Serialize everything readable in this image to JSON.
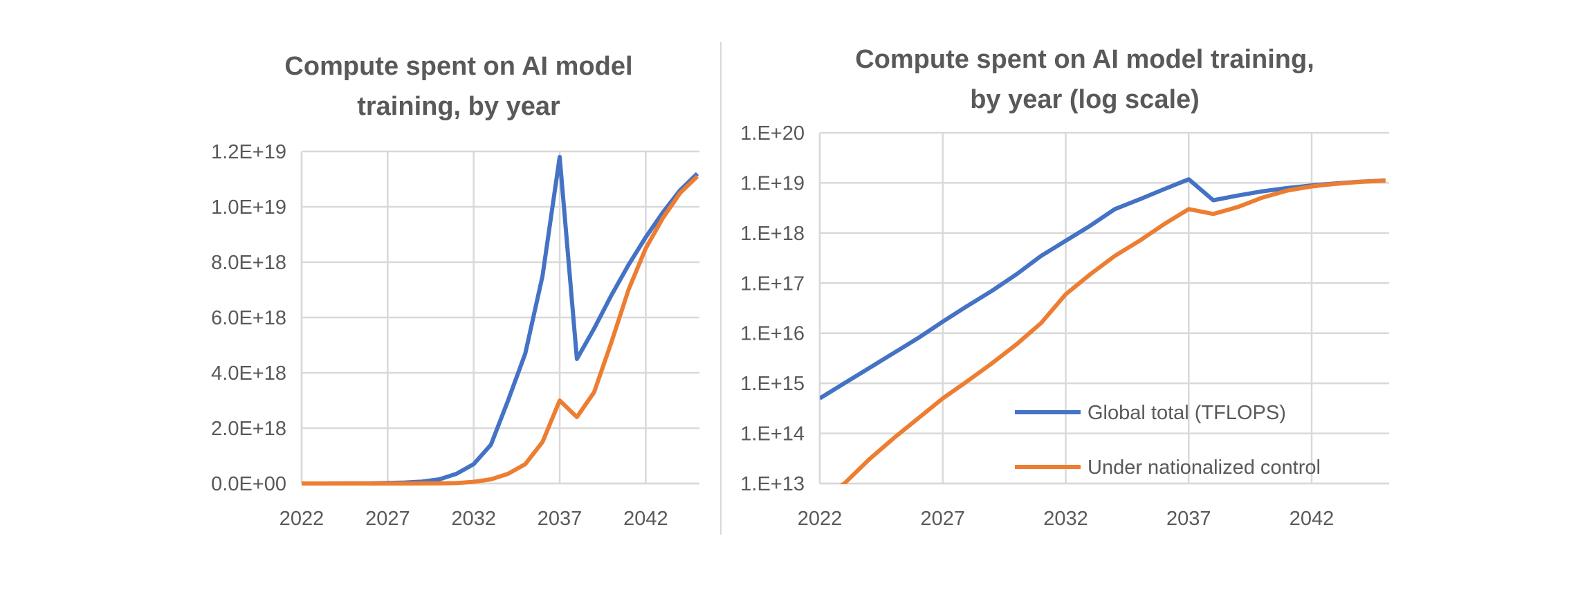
{
  "chart_data": [
    {
      "type": "line",
      "title": [
        "Compute spent on AI model",
        "training, by year"
      ],
      "xlabel": "",
      "ylabel": "",
      "x": [
        2022,
        2023,
        2024,
        2025,
        2026,
        2027,
        2028,
        2029,
        2030,
        2031,
        2032,
        2033,
        2034,
        2035,
        2036,
        2037,
        2038,
        2039,
        2040,
        2041,
        2042,
        2043,
        2044,
        2045
      ],
      "xticks": [
        "2022",
        "2027",
        "2032",
        "2037",
        "2042"
      ],
      "yticks": [
        "0.0E+00",
        "2.0E+18",
        "4.0E+18",
        "6.0E+18",
        "8.0E+18",
        "1.0E+19",
        "1.2E+19"
      ],
      "ylim": [
        0,
        1.2e+19
      ],
      "yscale": "linear",
      "grid": true,
      "series": [
        {
          "name": "Global total (TFLOPS)",
          "color": "#4472c4",
          "values": [
            500000000000000.0,
            1000000000000000.0,
            2000000000000000.0,
            4000000000000000.0,
            8000000000000000.0,
            1.7e+16,
            3.5e+16,
            7e+16,
            1.5e+17,
            3.5e+17,
            7e+17,
            1.4e+18,
            3e+18,
            4.7e+18,
            7.5e+18,
            1.18e+19,
            4.5e+18,
            5.6e+18,
            6.8e+18,
            7.9e+18,
            8.9e+18,
            9.8e+18,
            1.06e+19,
            1.12e+19
          ]
        },
        {
          "name": "Under nationalized control",
          "color": "#ed7d31",
          "values": [
            5000000000000.0,
            10000000000000.0,
            30000000000000.0,
            80000000000000.0,
            200000000000000.0,
            500000000000000.0,
            1100000000000000.0,
            2500000000000000.0,
            6000000000000000.0,
            1.6e+16,
            6e+16,
            1.5e+17,
            3.5e+17,
            7e+17,
            1.5e+18,
            3e+18,
            2.4e+18,
            3.3e+18,
            5.1e+18,
            7e+18,
            8.5e+18,
            9.6e+18,
            1.05e+19,
            1.11e+19
          ]
        }
      ]
    },
    {
      "type": "line",
      "title": [
        "Compute spent on AI model training,",
        "by year (log scale)"
      ],
      "xlabel": "",
      "ylabel": "",
      "x": [
        2022,
        2023,
        2024,
        2025,
        2026,
        2027,
        2028,
        2029,
        2030,
        2031,
        2032,
        2033,
        2034,
        2035,
        2036,
        2037,
        2038,
        2039,
        2040,
        2041,
        2042,
        2043,
        2044,
        2045
      ],
      "xticks": [
        "2022",
        "2027",
        "2032",
        "2037",
        "2042"
      ],
      "yticks": [
        "1.E+13",
        "1.E+14",
        "1.E+15",
        "1.E+16",
        "1.E+17",
        "1.E+18",
        "1.E+19",
        "1.E+20"
      ],
      "ylim": [
        10000000000000.0,
        1e+20
      ],
      "yscale": "log",
      "grid": true,
      "legend": "bottom-right",
      "series": [
        {
          "name": "Global total (TFLOPS)",
          "color": "#4472c4",
          "values": [
            500000000000000.0,
            1000000000000000.0,
            2000000000000000.0,
            4000000000000000.0,
            8000000000000000.0,
            1.7e+16,
            3.5e+16,
            7e+16,
            1.5e+17,
            3.5e+17,
            7e+17,
            1.4e+18,
            3e+18,
            4.7e+18,
            7.5e+18,
            1.18e+19,
            4.5e+18,
            5.6e+18,
            6.8e+18,
            7.9e+18,
            8.9e+18,
            9.8e+18,
            1.06e+19,
            1.12e+19
          ]
        },
        {
          "name": "Under nationalized control",
          "color": "#ed7d31",
          "values": [
            5000000000000.0,
            10000000000000.0,
            30000000000000.0,
            80000000000000.0,
            200000000000000.0,
            500000000000000.0,
            1100000000000000.0,
            2500000000000000.0,
            6000000000000000.0,
            1.6e+16,
            6e+16,
            1.5e+17,
            3.5e+17,
            7e+17,
            1.5e+18,
            3e+18,
            2.4e+18,
            3.3e+18,
            5.1e+18,
            7e+18,
            8.5e+18,
            9.6e+18,
            1.05e+19,
            1.11e+19
          ]
        }
      ]
    }
  ]
}
